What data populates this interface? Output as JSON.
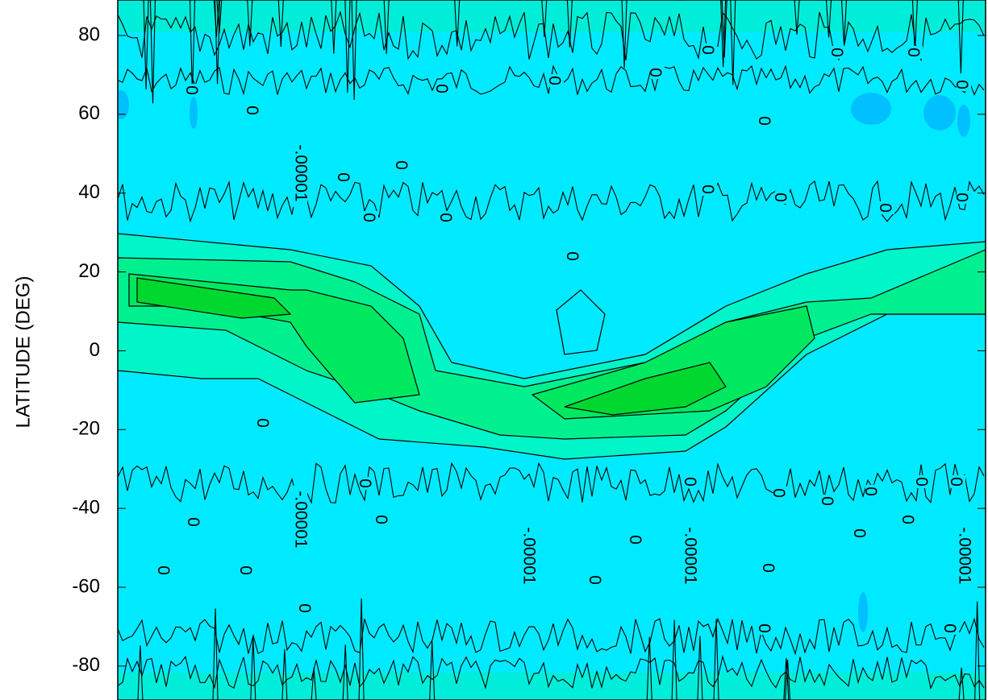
{
  "chart_data": {
    "type": "contour",
    "y_label": "LATITUDE (DEG)",
    "ylim": [
      -88,
      89
    ],
    "yticks": [
      80,
      60,
      40,
      20,
      0,
      -20,
      -40,
      -60,
      -80
    ],
    "contour_labels": [
      "0",
      "0",
      "-.00001",
      "0",
      "0",
      "0",
      "0",
      "0",
      "0",
      "0",
      "0",
      "0",
      "0",
      "0",
      "0",
      "0",
      "0",
      "0",
      "0",
      "0",
      "0",
      "-.00001",
      "0",
      "0",
      "0",
      "0",
      "0",
      "0",
      "-.00001",
      "0",
      "-.00001",
      "0",
      "0",
      "0",
      "0",
      "0",
      "-.00001",
      "0",
      "0",
      "0",
      "0",
      "0",
      "0",
      "0"
    ]
  }
}
